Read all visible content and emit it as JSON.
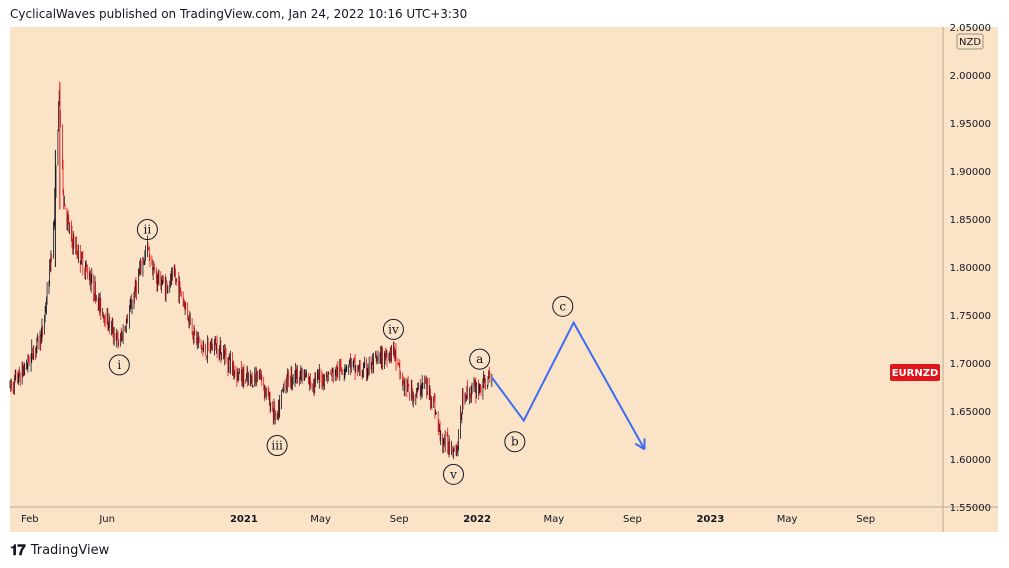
{
  "header": {
    "published": "CyclicalWaves published on TradingView.com, Jan 24, 2022 10:16 UTC+3:30"
  },
  "footer": {
    "logo_text": "TradingView"
  },
  "colors": {
    "background": "#fbe3c8",
    "candle_up": "#131722",
    "candle_down": "#e0141b",
    "projection": "#3d6cf2",
    "badge": "#e0141b"
  },
  "chart_data": {
    "type": "candlestick",
    "symbol_badge": "EURNZD",
    "currency_label": "NZD",
    "ylim": [
      1.55,
      2.05
    ],
    "y_ticks": [
      "2.05000",
      "2.00000",
      "1.95000",
      "1.90000",
      "1.85000",
      "1.80000",
      "1.75000",
      "1.70000",
      "1.65000",
      "1.60000",
      "1.55000"
    ],
    "x_ticks": [
      "Feb",
      "Jun",
      "2021",
      "May",
      "Sep",
      "2022",
      "May",
      "Sep",
      "2023",
      "May",
      "Sep"
    ],
    "x_range": [
      "2020-01",
      "2023-12"
    ],
    "price_path": [
      [
        "2020-01-01",
        1.675
      ],
      [
        "2020-01-20",
        1.69
      ],
      [
        "2020-02-05",
        1.71
      ],
      [
        "2020-02-20",
        1.73
      ],
      [
        "2020-03-01",
        1.78
      ],
      [
        "2020-03-10",
        1.85
      ],
      [
        "2020-03-18",
        1.98
      ],
      [
        "2020-03-25",
        1.87
      ],
      [
        "2020-04-05",
        1.83
      ],
      [
        "2020-04-20",
        1.81
      ],
      [
        "2020-05-05",
        1.79
      ],
      [
        "2020-05-20",
        1.76
      ],
      [
        "2020-06-05",
        1.74
      ],
      [
        "2020-06-20",
        1.72
      ],
      [
        "2020-07-05",
        1.75
      ],
      [
        "2020-07-20",
        1.79
      ],
      [
        "2020-08-03",
        1.82
      ],
      [
        "2020-08-15",
        1.79
      ],
      [
        "2020-09-01",
        1.78
      ],
      [
        "2020-09-15",
        1.79
      ],
      [
        "2020-10-01",
        1.76
      ],
      [
        "2020-10-15",
        1.73
      ],
      [
        "2020-11-01",
        1.71
      ],
      [
        "2020-11-15",
        1.72
      ],
      [
        "2020-12-01",
        1.71
      ],
      [
        "2020-12-20",
        1.69
      ],
      [
        "2021-01-10",
        1.68
      ],
      [
        "2021-01-25",
        1.69
      ],
      [
        "2021-02-10",
        1.66
      ],
      [
        "2021-02-22",
        1.64
      ],
      [
        "2021-03-05",
        1.68
      ],
      [
        "2021-03-25",
        1.69
      ],
      [
        "2021-04-15",
        1.68
      ],
      [
        "2021-05-05",
        1.685
      ],
      [
        "2021-05-25",
        1.69
      ],
      [
        "2021-06-15",
        1.7
      ],
      [
        "2021-07-05",
        1.69
      ],
      [
        "2021-07-25",
        1.7
      ],
      [
        "2021-08-15",
        1.71
      ],
      [
        "2021-08-23",
        1.715
      ],
      [
        "2021-09-05",
        1.68
      ],
      [
        "2021-09-25",
        1.665
      ],
      [
        "2021-10-10",
        1.68
      ],
      [
        "2021-10-25",
        1.66
      ],
      [
        "2021-11-05",
        1.62
      ],
      [
        "2021-11-20",
        1.615
      ],
      [
        "2021-12-01",
        1.61
      ],
      [
        "2021-12-10",
        1.665
      ],
      [
        "2021-12-20",
        1.67
      ],
      [
        "2022-01-05",
        1.675
      ],
      [
        "2022-01-24",
        1.685
      ]
    ],
    "projection_path": [
      [
        "2022-01-24",
        1.685
      ],
      [
        "2022-03-15",
        1.64
      ],
      [
        "2022-06-01",
        1.742
      ],
      [
        "2022-09-20",
        1.61
      ]
    ],
    "wave_labels": [
      {
        "label": "i",
        "date": "2020-06-20",
        "price": 1.698,
        "anchor": "below"
      },
      {
        "label": "ii",
        "date": "2020-08-03",
        "price": 1.839,
        "anchor": "above"
      },
      {
        "label": "iii",
        "date": "2021-02-22",
        "price": 1.614,
        "anchor": "below"
      },
      {
        "label": "iv",
        "date": "2021-08-23",
        "price": 1.735,
        "anchor": "above"
      },
      {
        "label": "v",
        "date": "2021-11-25",
        "price": 1.584,
        "anchor": "below"
      },
      {
        "label": "a",
        "date": "2022-01-05",
        "price": 1.704,
        "anchor": "above"
      },
      {
        "label": "b",
        "date": "2022-03-01",
        "price": 1.618,
        "anchor": "below"
      },
      {
        "label": "c",
        "date": "2022-05-15",
        "price": 1.759,
        "anchor": "above"
      }
    ]
  }
}
